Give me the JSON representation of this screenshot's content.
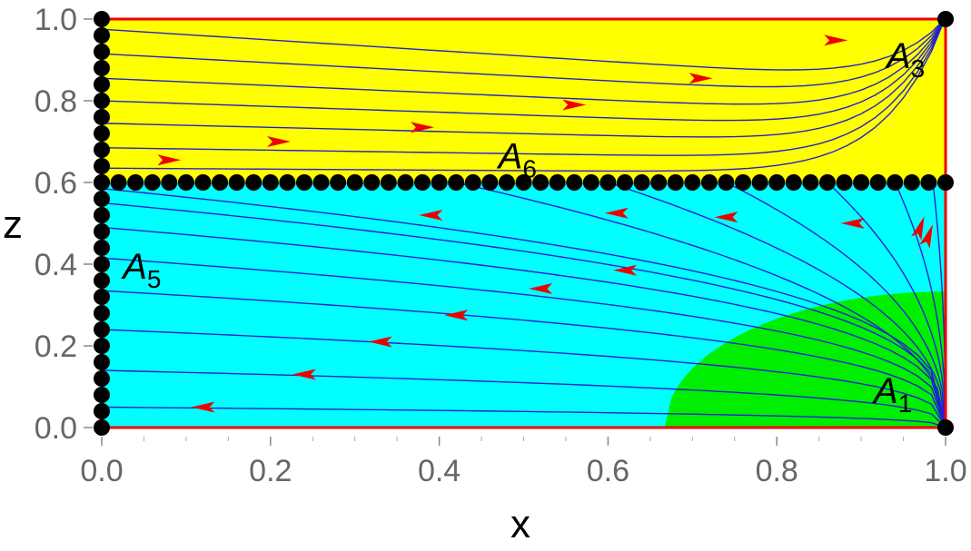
{
  "chart_data": {
    "type": "stream-plot",
    "xlabel": "x",
    "ylabel": "z",
    "xlim": [
      0,
      1
    ],
    "ylim": [
      0,
      1
    ],
    "x_ticks": [
      "0.0",
      "0.2",
      "0.4",
      "0.6",
      "0.8",
      "1.0"
    ],
    "y_ticks": [
      "0.0",
      "0.2",
      "0.4",
      "0.6",
      "0.8",
      "1.0"
    ],
    "colors": {
      "yellow_region": "#ffff00",
      "cyan_region": "#00ffff",
      "green_region": "#00ee00",
      "border": "#ee0000",
      "streamline": "#2222cc",
      "arrow": "#ee0000",
      "fixed_point": "#000000"
    },
    "regions": [
      {
        "color": "yellow",
        "z_range": [
          0.6,
          1.0
        ]
      },
      {
        "color": "cyan",
        "z_range": [
          0.0,
          0.6
        ]
      },
      {
        "color": "green",
        "x_start_at_z0": 0.667,
        "z_at_x1": 0.333
      }
    ],
    "points": [
      {
        "label": "A",
        "subscript": "1",
        "x": 1.0,
        "z": 0.0,
        "label_x": 0.915,
        "label_z": 0.06
      },
      {
        "label": "A",
        "subscript": "3",
        "x": 1.0,
        "z": 1.0,
        "label_x": 0.93,
        "label_z": 0.88
      },
      {
        "label": "A",
        "subscript": "5",
        "x": 0.0,
        "z": 0.4,
        "label_x": 0.025,
        "label_z": 0.365
      },
      {
        "label": "A",
        "subscript": "6",
        "x": 0.5,
        "z": 0.6,
        "label_x": 0.47,
        "label_z": 0.635
      }
    ],
    "fixed_lines": [
      {
        "name": "x=0 line",
        "x": 0.0,
        "z_range": [
          0.0,
          1.0
        ],
        "count": 26
      },
      {
        "name": "z=0.6 line",
        "z": 0.6,
        "x_range": [
          0.0,
          1.0
        ],
        "count": 51
      }
    ],
    "streamlines_upper": [
      {
        "start": [
          0.0,
          0.975
        ],
        "arrow": [
          0.87,
          0.948
        ]
      },
      {
        "start": [
          0.0,
          0.915
        ],
        "arrow": [
          0.71,
          0.855
        ]
      },
      {
        "start": [
          0.0,
          0.855
        ],
        "arrow": [
          0.56,
          0.79
        ]
      },
      {
        "start": [
          0.0,
          0.8
        ],
        "arrow": [
          0.38,
          0.735
        ]
      },
      {
        "start": [
          0.0,
          0.745
        ],
        "arrow": [
          0.21,
          0.7
        ]
      },
      {
        "start": [
          0.0,
          0.685
        ],
        "arrow": [
          0.08,
          0.655
        ]
      },
      {
        "start": [
          0.0,
          0.635
        ],
        "arrow": null
      }
    ],
    "streamlines_lower": [
      {
        "end_z": 0.05,
        "arrow": [
          0.12,
          0.05
        ]
      },
      {
        "end_z": 0.14,
        "arrow": [
          0.24,
          0.13
        ]
      },
      {
        "end_z": 0.24,
        "arrow": [
          0.33,
          0.21
        ]
      },
      {
        "end_z": 0.335,
        "arrow": [
          0.42,
          0.275
        ]
      },
      {
        "end_z": 0.415,
        "arrow": [
          0.52,
          0.34
        ]
      },
      {
        "end_z": 0.49,
        "arrow": [
          0.62,
          0.385
        ]
      },
      {
        "end_z": 0.55,
        "arrow": [
          0.61,
          0.525
        ]
      },
      {
        "end_z": 0.585,
        "arrow": null
      },
      {
        "end_x": 0.42,
        "arrow": [
          0.39,
          0.52
        ]
      },
      {
        "end_x": 0.6,
        "arrow": [
          0.74,
          0.515
        ]
      },
      {
        "end_x": 0.74,
        "arrow": [
          0.89,
          0.5
        ]
      },
      {
        "end_x": 0.86,
        "arrow": [
          0.97,
          0.49
        ]
      },
      {
        "end_x": 0.94,
        "arrow": [
          0.98,
          0.47
        ]
      },
      {
        "end_x": 0.985,
        "arrow": null
      }
    ]
  }
}
